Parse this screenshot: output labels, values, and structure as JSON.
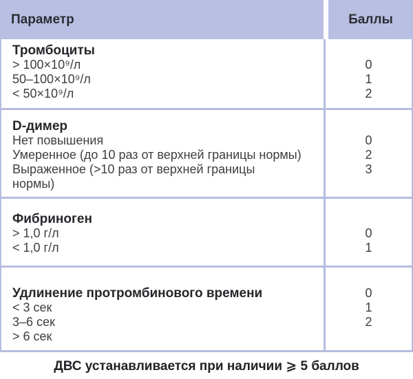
{
  "header": {
    "param_label": "Параметр",
    "score_label": "Баллы"
  },
  "sections": [
    {
      "rows": [
        {
          "text": "Тромбоциты",
          "bold": true,
          "score": ""
        },
        {
          "text": "> 100×10⁹/л",
          "bold": false,
          "score": "0"
        },
        {
          "text": "50–100×10⁹/л",
          "bold": false,
          "score": "1"
        },
        {
          "text": "< 50×10⁹/л",
          "bold": false,
          "score": "2"
        }
      ]
    },
    {
      "rows": [
        {
          "text": "D-димер",
          "bold": true,
          "score": ""
        },
        {
          "text": "Нет повышения",
          "bold": false,
          "score": "0"
        },
        {
          "text": "Умеренное (до 10 раз от верхней границы нормы)",
          "bold": false,
          "score": "2"
        },
        {
          "text": "Выраженное (>10 раз от верхней границы\nнормы)",
          "bold": false,
          "score": "3"
        }
      ]
    },
    {
      "rows": [
        {
          "text": "Фибриноген",
          "bold": true,
          "score": ""
        },
        {
          "text": "> 1,0 г/л",
          "bold": false,
          "score": "0"
        },
        {
          "text": "< 1,0 г/л",
          "bold": false,
          "score": "1"
        }
      ]
    },
    {
      "rows": [
        {
          "text": "Удлинение протромбинового времени",
          "bold": true,
          "score": "0"
        },
        {
          "text": "< 3 сек",
          "bold": false,
          "score": "1"
        },
        {
          "text": "3–6 сек",
          "bold": false,
          "score": "2"
        },
        {
          "text": "> 6 сек",
          "bold": false,
          "score": ""
        }
      ]
    }
  ],
  "footer": {
    "note": "ДВС устанавливается при наличии ⩾ 5 баллов"
  },
  "colors": {
    "header_bg": "#b9bfe2",
    "grid_line": "#b5bcde",
    "body_bg": "#ffffff",
    "text": "#3e3e42",
    "title_text": "#26262b"
  }
}
